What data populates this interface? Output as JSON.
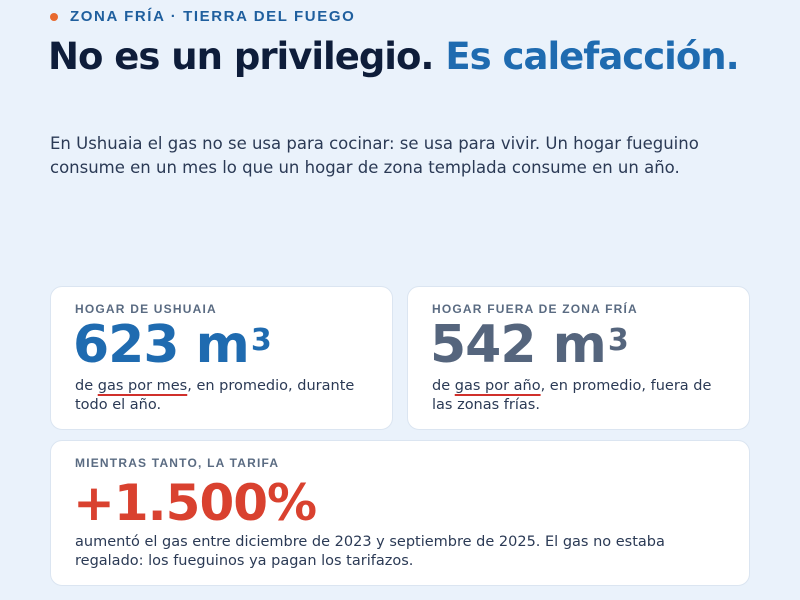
{
  "kicker": "ZONA FRÍA · TIERRA DEL FUEGO",
  "headline": {
    "part1": "No es un privilegio.",
    "part2": "Es calefacción."
  },
  "lead": "En Ushuaia el gas no se usa para cocinar: se usa para vivir. Un hogar fueguino consume en un mes lo que un hogar de zona templada consume en un año.",
  "cards": {
    "ushuaia": {
      "label": "HOGAR DE USHUAIA",
      "value": "623 m",
      "unit_sup": "3",
      "desc_pre": "de ",
      "desc_ul": "gas por mes",
      "desc_post": ", en promedio, durante todo el año."
    },
    "templada": {
      "label": "HOGAR FUERA DE ZONA FRÍA",
      "value": "542 m",
      "unit_sup": "3",
      "desc_pre": "de ",
      "desc_ul": "gas por año",
      "desc_post": ", en promedio, fuera de las zonas frías."
    },
    "tarifa": {
      "label": "MIENTRAS TANTO, LA TARIFA",
      "value": "+1.500%",
      "desc": "aumentó el gas entre diciembre de 2023 y septiembre de 2025. El gas no estaba regalado: los fueguinos ya pagan los tarifazos."
    }
  },
  "colors": {
    "accent_blue": "#1f6bb0",
    "accent_orange": "#e8692e",
    "accent_red": "#d9412f",
    "gray_value": "#55657d"
  }
}
